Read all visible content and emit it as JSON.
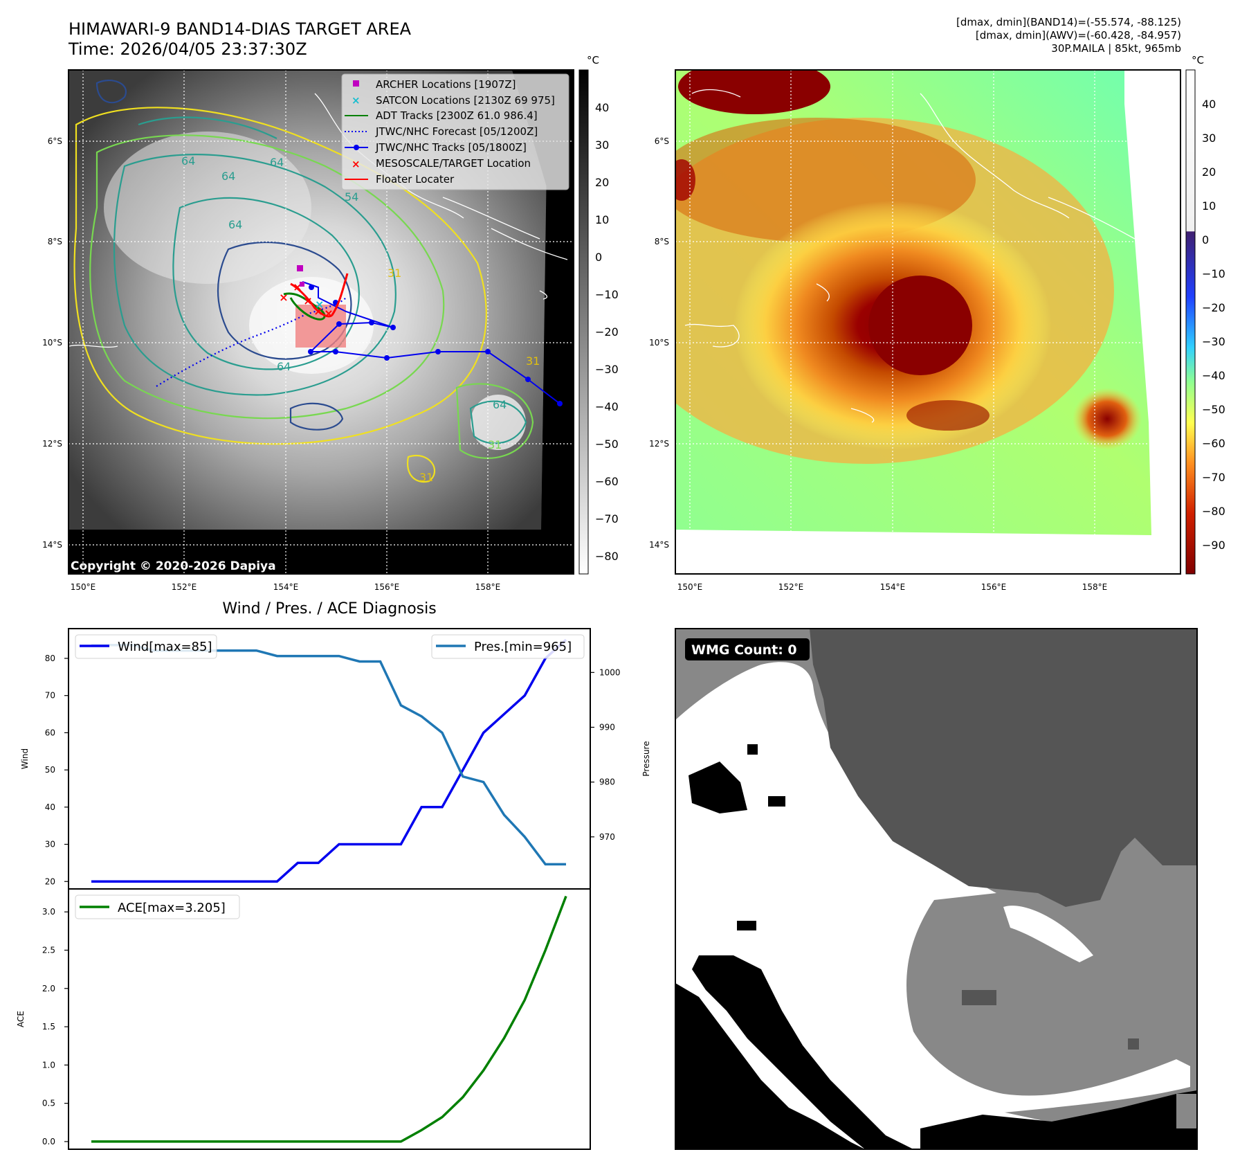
{
  "header": {
    "title_line1": "HIMAWARI-9 BAND14-DIAS TARGET AREA",
    "title_line2": "Time: 2026/04/05 23:37:30Z",
    "info_line1": "[dmax, dmin](BAND14)=(-55.574, -88.125)",
    "info_line2": "[dmax, dmin](AWV)=(-60.428, -84.957)",
    "info_line3": "30P.MAILA | 85kt, 965mb"
  },
  "colors": {
    "wind": "#0000ee",
    "pressure": "#1f77b4",
    "ace": "#008000",
    "adt": "#008000",
    "jtwc_forecast": "#0000ee",
    "jtwc_tracks": "#0000ee",
    "archer": "#c000c0",
    "satcon": "#17becf",
    "mesoscale": "#ff0000",
    "floater": "#ff0000",
    "contour_31": "#f0e020",
    "contour_54": "#78d850",
    "contour_64": "#2a9d8f",
    "contour_deep": "#2b4b8f"
  },
  "map_axes": {
    "lat_ticks": [
      "6°S",
      "8°S",
      "10°S",
      "12°S",
      "14°S"
    ],
    "lon_ticks": [
      "150°E",
      "152°E",
      "154°E",
      "156°E",
      "158°E"
    ],
    "copyright": "Copyright © 2020-2026 Dapiya",
    "contour_labels": [
      "64",
      "64",
      "64",
      "54",
      "64",
      "31",
      "31",
      "31",
      "64",
      "64",
      "31"
    ]
  },
  "ir_colorbar": {
    "unit": "°C",
    "ticks": [
      "40",
      "30",
      "20",
      "10",
      "0",
      "−10",
      "−20",
      "−30",
      "−40",
      "−50",
      "−60",
      "−70",
      "−80"
    ]
  },
  "awv_colorbar": {
    "unit": "°C",
    "ticks": [
      "40",
      "30",
      "20",
      "10",
      "0",
      "−10",
      "−20",
      "−30",
      "−40",
      "−50",
      "−60",
      "−70",
      "−80",
      "−90"
    ]
  },
  "legend": {
    "archer": "ARCHER Locations [1907Z]",
    "satcon": "SATCON Locations [2130Z 69 975]",
    "adt": "ADT Tracks [2300Z 61.0 986.4]",
    "jtwc_forecast": "JTWC/NHC Forecast [05/1200Z]",
    "jtwc_tracks": "JTWC/NHC Tracks [05/1800Z]",
    "mesoscale": "MESOSCALE/TARGET Location",
    "floater": "Floater Locater"
  },
  "diag": {
    "title": "Wind / Pres. / ACE Diagnosis",
    "wind_legend": "Wind[max=85]",
    "pres_legend": "Pres.[min=965]",
    "ace_legend": "ACE[max=3.205]",
    "wind_axis_label": "Wind",
    "pres_axis_label": "Pressure",
    "ace_axis_label": "ACE"
  },
  "wmg": {
    "label": "WMG Count: 0"
  },
  "chart_data": [
    {
      "type": "line",
      "title": "Wind / Pres. / ACE Diagnosis",
      "ylabel": "Wind",
      "ylim": [
        18,
        88
      ],
      "yticks": [
        20,
        30,
        40,
        50,
        60,
        70,
        80
      ],
      "series": [
        {
          "name": "Wind[max=85]",
          "values": [
            20,
            20,
            20,
            20,
            20,
            20,
            20,
            20,
            20,
            20,
            25,
            25,
            30,
            30,
            30,
            30,
            40,
            40,
            50,
            60,
            65,
            70,
            80,
            85
          ]
        }
      ]
    },
    {
      "type": "line",
      "ylabel": "Pressure",
      "ylim": [
        960.5,
        1008
      ],
      "yticks": [
        970,
        980,
        990,
        1000
      ],
      "series": [
        {
          "name": "Pres.[min=965]",
          "values": [
            1005,
            1005,
            1005,
            1004,
            1004,
            1004,
            1004,
            1004,
            1004,
            1003,
            1003,
            1003,
            1003,
            1002,
            1002,
            994,
            992,
            989,
            981,
            980,
            974,
            970,
            965,
            965
          ]
        }
      ]
    },
    {
      "type": "line",
      "ylabel": "ACE",
      "ylim": [
        -0.1,
        3.3
      ],
      "yticks": [
        0.0,
        0.5,
        1.0,
        1.5,
        2.0,
        2.5,
        3.0
      ],
      "series": [
        {
          "name": "ACE[max=3.205]",
          "values": [
            0,
            0,
            0,
            0,
            0,
            0,
            0,
            0,
            0,
            0,
            0,
            0,
            0,
            0,
            0,
            0,
            0.15,
            0.32,
            0.58,
            0.93,
            1.35,
            1.85,
            2.5,
            3.205
          ]
        }
      ]
    }
  ]
}
